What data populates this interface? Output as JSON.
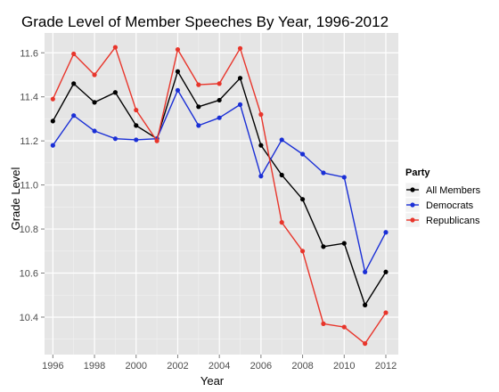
{
  "chart_data": {
    "type": "line",
    "title": "Grade Level of Member Speeches By Year, 1996-2012",
    "xlabel": "Year",
    "ylabel": "Grade Level",
    "x": [
      1996,
      1997,
      1998,
      1999,
      2000,
      2001,
      2002,
      2003,
      2004,
      2005,
      2006,
      2007,
      2008,
      2009,
      2010,
      2011,
      2012
    ],
    "xlim": [
      1995.6,
      2012.6
    ],
    "ylim": [
      10.23,
      11.69
    ],
    "xticks": [
      1996,
      1998,
      2000,
      2002,
      2004,
      2006,
      2008,
      2010,
      2012
    ],
    "yticks": [
      10.4,
      10.6,
      10.8,
      11.0,
      11.2,
      11.4,
      11.6
    ],
    "yticklabels": [
      "10.4",
      "10.6",
      "10.8",
      "11.0",
      "11.2",
      "11.4",
      "11.6"
    ],
    "grid": true,
    "legend": {
      "title": "Party",
      "position": "right"
    },
    "series": [
      {
        "name": "All Members",
        "color": "#000000",
        "values": [
          11.29,
          11.46,
          11.375,
          11.42,
          11.27,
          11.21,
          11.515,
          11.355,
          11.385,
          11.485,
          11.18,
          11.045,
          10.935,
          10.72,
          10.735,
          10.455,
          10.605
        ]
      },
      {
        "name": "Democrats",
        "color": "#1a2fd6",
        "values": [
          11.18,
          11.315,
          11.245,
          11.21,
          11.205,
          11.21,
          11.43,
          11.27,
          11.305,
          11.365,
          11.04,
          11.205,
          11.14,
          11.055,
          11.035,
          10.605,
          10.785
        ]
      },
      {
        "name": "Republicans",
        "color": "#e8352b",
        "values": [
          11.39,
          11.595,
          11.5,
          11.625,
          11.34,
          11.2,
          11.615,
          11.455,
          11.46,
          11.62,
          11.32,
          10.83,
          10.7,
          10.37,
          10.355,
          10.28,
          10.42
        ]
      }
    ]
  }
}
